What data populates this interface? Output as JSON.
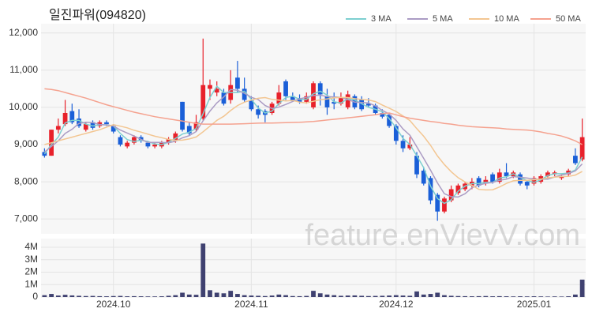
{
  "chart_data": [
    {
      "type": "candlestick",
      "title": "일진파워(094820)",
      "watermark": "feature.enVievV.com",
      "up_color": "#e8212b",
      "down_color": "#1a5fd8",
      "legend": "top-right",
      "grid": true,
      "open": [
        8800,
        8700,
        9400,
        9550,
        9900,
        9700,
        9400,
        9600,
        9500,
        9600,
        9500,
        9200,
        8950,
        9050,
        9200,
        9050,
        8950,
        8950,
        9050,
        9100,
        10150,
        9500,
        9400,
        9700,
        10500,
        10400,
        10400,
        10200,
        10800,
        10500,
        10200,
        9950,
        9900,
        9850,
        10100,
        10700,
        10300,
        10250,
        10150,
        10000,
        10650,
        10300,
        10150,
        10100,
        10000,
        10300,
        10200,
        10100,
        10050,
        9850,
        9800,
        9500,
        9100,
        8900,
        8700,
        8300,
        8100,
        7650,
        7200,
        7500,
        7700,
        7800,
        7900,
        8100,
        7950,
        8200,
        8000,
        8250,
        8150,
        8200,
        8000,
        7950,
        8000,
        8150,
        8200,
        8100,
        8200,
        8700,
        8600
      ],
      "high": [
        8900,
        9400,
        9700,
        10200,
        10100,
        9950,
        9600,
        9650,
        9650,
        9650,
        9550,
        9250,
        9100,
        9250,
        9250,
        9100,
        9050,
        9100,
        9200,
        9350,
        10150,
        9600,
        9800,
        11850,
        10750,
        10700,
        10500,
        11000,
        11250,
        10800,
        10300,
        10050,
        9950,
        10150,
        10600,
        10750,
        10400,
        10350,
        10400,
        10700,
        10700,
        10500,
        10400,
        10400,
        10450,
        10350,
        10300,
        10250,
        10100,
        9950,
        9850,
        9550,
        9250,
        9200,
        8800,
        8400,
        8150,
        7700,
        7600,
        7900,
        7950,
        8000,
        8100,
        8150,
        8150,
        8250,
        8350,
        8500,
        8300,
        8250,
        8050,
        8150,
        8200,
        8300,
        8300,
        8200,
        8350,
        8900,
        9700
      ],
      "low": [
        8650,
        8700,
        9300,
        9500,
        9550,
        9450,
        9350,
        9400,
        9450,
        9500,
        9300,
        8950,
        8900,
        9000,
        9050,
        8900,
        8900,
        8900,
        9000,
        9050,
        9350,
        9250,
        9350,
        9650,
        10200,
        10300,
        10050,
        10100,
        10400,
        10150,
        9900,
        9700,
        9600,
        9800,
        10050,
        10200,
        10150,
        10100,
        10100,
        9950,
        10050,
        9800,
        9950,
        10050,
        9950,
        9950,
        9900,
        10000,
        9800,
        9700,
        9450,
        9000,
        8800,
        8850,
        8100,
        7900,
        7400,
        6950,
        7150,
        7450,
        7650,
        7750,
        7800,
        7850,
        7900,
        7950,
        7950,
        8100,
        8100,
        7900,
        7800,
        7900,
        7950,
        8100,
        8150,
        8050,
        8150,
        8450,
        8550
      ],
      "close": [
        8700,
        9400,
        9500,
        9850,
        9600,
        9500,
        9550,
        9450,
        9600,
        9550,
        9350,
        9000,
        9050,
        9200,
        9100,
        8950,
        9000,
        9050,
        9150,
        9300,
        9400,
        9300,
        9600,
        10600,
        10600,
        10500,
        10100,
        10600,
        10500,
        10200,
        9950,
        9800,
        9800,
        10100,
        10400,
        10300,
        10200,
        10150,
        10300,
        10650,
        10350,
        10000,
        10100,
        10250,
        10350,
        10000,
        9950,
        10050,
        9850,
        9750,
        9500,
        9100,
        8900,
        9000,
        8200,
        7950,
        7500,
        7200,
        7550,
        7800,
        7900,
        7950,
        8000,
        7900,
        8050,
        8000,
        8250,
        8150,
        8250,
        7950,
        7900,
        8100,
        8150,
        8250,
        8250,
        8150,
        8300,
        8500,
        9200
      ],
      "series": [
        {
          "name": "3 MA",
          "color": "#7dcfd0",
          "values": [
            8750,
            9000,
            9200,
            9583,
            9650,
            9650,
            9550,
            9500,
            9533,
            9533,
            9500,
            9300,
            9133,
            9083,
            9117,
            9083,
            9017,
            9000,
            9067,
            9167,
            9283,
            9333,
            9433,
            9833,
            10267,
            10567,
            10400,
            10400,
            10400,
            10433,
            10217,
            9983,
            9850,
            9900,
            10100,
            10267,
            10300,
            10217,
            10217,
            10367,
            10433,
            10333,
            10150,
            10117,
            10233,
            10200,
            10100,
            10000,
            9950,
            9883,
            9700,
            9450,
            9167,
            9000,
            8700,
            8383,
            7883,
            7550,
            7417,
            7517,
            7750,
            7883,
            7950,
            7950,
            7983,
            7983,
            8100,
            8133,
            8217,
            8117,
            8033,
            7983,
            8050,
            8167,
            8217,
            8217,
            8233,
            8317,
            8667
          ]
        },
        {
          "name": "5 MA",
          "color": "#ab9cc4",
          "values": [
            8800,
            8950,
            9100,
            9300,
            9410,
            9570,
            9600,
            9590,
            9540,
            9530,
            9500,
            9390,
            9310,
            9230,
            9140,
            9060,
            9060,
            9060,
            9050,
            9090,
            9180,
            9240,
            9350,
            9640,
            9900,
            10120,
            10280,
            10480,
            10460,
            10380,
            10270,
            10210,
            10050,
            9970,
            10010,
            10080,
            10160,
            10230,
            10270,
            10320,
            10330,
            10290,
            10280,
            10270,
            10210,
            10140,
            10130,
            10120,
            10040,
            9920,
            9820,
            9650,
            9420,
            9250,
            8940,
            8630,
            8310,
            7970,
            7680,
            7600,
            7590,
            7680,
            7840,
            7910,
            7960,
            7980,
            8040,
            8070,
            8140,
            8120,
            8100,
            8070,
            8070,
            8070,
            8130,
            8180,
            8220,
            8290,
            8480
          ]
        },
        {
          "name": "10 MA",
          "color": "#f3c692",
          "values": [
            9000,
            9050,
            9100,
            9150,
            9200,
            9250,
            9300,
            9350,
            9400,
            9470,
            9535,
            9495,
            9450,
            9385,
            9335,
            9280,
            9225,
            9185,
            9140,
            9115,
            9120,
            9150,
            9205,
            9345,
            9495,
            9650,
            9760,
            9915,
            10050,
            10140,
            10195,
            10245,
            10265,
            10215,
            10195,
            10175,
            10185,
            10140,
            10120,
            10165,
            10205,
            10225,
            10255,
            10270,
            10265,
            10235,
            10210,
            10200,
            10155,
            10065,
            9980,
            9890,
            9770,
            9645,
            9430,
            9225,
            8980,
            8695,
            8465,
            8270,
            8110,
            7995,
            7905,
            7795,
            7780,
            7785,
            7860,
            7955,
            8025,
            8040,
            8040,
            8055,
            8070,
            8105,
            8125,
            8140,
            8145,
            8180,
            8275
          ]
        },
        {
          "name": "50 MA",
          "color": "#f5a28f",
          "values": [
            10500,
            10480,
            10450,
            10400,
            10350,
            10300,
            10250,
            10190,
            10130,
            10070,
            10020,
            9970,
            9920,
            9870,
            9830,
            9790,
            9750,
            9720,
            9690,
            9660,
            9630,
            9600,
            9570,
            9550,
            9550,
            9550,
            9550,
            9550,
            9555,
            9560,
            9570,
            9575,
            9580,
            9580,
            9585,
            9590,
            9595,
            9600,
            9610,
            9620,
            9640,
            9660,
            9680,
            9700,
            9720,
            9740,
            9760,
            9780,
            9800,
            9830,
            9850,
            9800,
            9750,
            9710,
            9680,
            9650,
            9620,
            9600,
            9570,
            9550,
            9520,
            9500,
            9480,
            9470,
            9460,
            9450,
            9440,
            9420,
            9410,
            9400,
            9390,
            9370,
            9340,
            9300,
            9270,
            9230,
            9170,
            9100,
            9000
          ]
        }
      ],
      "ylim": [
        6600,
        12250
      ],
      "yticks": [
        {
          "value": 7000,
          "label": "7,000"
        },
        {
          "value": 8000,
          "label": "8,000"
        },
        {
          "value": 9000,
          "label": "9,000"
        },
        {
          "value": 10000,
          "label": "10,000"
        },
        {
          "value": 11000,
          "label": "11,000"
        },
        {
          "value": 12000,
          "label": "12,000"
        }
      ]
    },
    {
      "type": "bar",
      "color": "#3f4170",
      "grid": true,
      "categories": [
        null,
        null,
        null,
        null,
        null,
        null,
        null,
        null,
        null,
        null,
        "2024.10",
        null,
        null,
        null,
        null,
        null,
        null,
        null,
        null,
        null,
        null,
        null,
        null,
        null,
        null,
        null,
        null,
        null,
        null,
        null,
        "2024.11",
        null,
        null,
        null,
        null,
        null,
        null,
        null,
        null,
        null,
        null,
        null,
        null,
        null,
        null,
        null,
        null,
        null,
        null,
        null,
        null,
        "2024.12",
        null,
        null,
        null,
        null,
        null,
        null,
        null,
        null,
        null,
        null,
        null,
        null,
        null,
        null,
        null,
        null,
        null,
        null,
        null,
        "2025.01",
        null,
        null,
        null,
        null,
        null,
        null,
        null
      ],
      "values": [
        150000,
        250000,
        120000,
        180000,
        130000,
        100000,
        80000,
        90000,
        70000,
        60000,
        80000,
        90000,
        60000,
        70000,
        60000,
        50000,
        50000,
        60000,
        100000,
        150000,
        350000,
        200000,
        180000,
        4300000,
        550000,
        350000,
        300000,
        500000,
        250000,
        150000,
        120000,
        100000,
        80000,
        120000,
        200000,
        150000,
        80000,
        70000,
        90000,
        500000,
        300000,
        200000,
        150000,
        100000,
        120000,
        130000,
        100000,
        80000,
        90000,
        100000,
        120000,
        150000,
        120000,
        100000,
        450000,
        200000,
        250000,
        350000,
        150000,
        100000,
        80000,
        70000,
        60000,
        70000,
        80000,
        60000,
        70000,
        60000,
        50000,
        60000,
        50000,
        60000,
        50000,
        40000,
        50000,
        40000,
        60000,
        200000,
        1400000
      ],
      "ylim": [
        0,
        4700000
      ],
      "yticks": [
        0,
        {
          "value": 1000000,
          "label": "1M"
        },
        {
          "value": 2000000,
          "label": "2M"
        },
        {
          "value": 3000000,
          "label": "3M"
        },
        {
          "value": 4000000,
          "label": "4M"
        }
      ]
    }
  ]
}
